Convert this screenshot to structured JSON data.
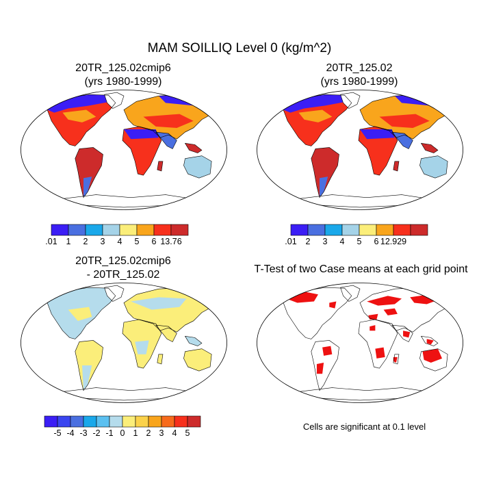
{
  "title": "MAM SOILLIQ Level 0 (kg/m^2)",
  "panels": [
    {
      "line1": "20TR_125.02cmip6",
      "line2": "(yrs 1980-1999)"
    },
    {
      "line1": "20TR_125.02",
      "line2": "(yrs 1980-1999)"
    },
    {
      "line1": "20TR_125.02cmip6",
      "line2": "- 20TR_125.02"
    },
    {
      "line1": "T-Test of two Case means at each grid point"
    }
  ],
  "colorbars": [
    {
      "colors": [
        "#3b1ef5",
        "#4a6fe0",
        "#1aa8ea",
        "#a5d3e8",
        "#fbee7a",
        "#f9a51c",
        "#f7301c",
        "#cd2b2b"
      ],
      "labels": [
        ".01",
        "1",
        "2",
        "3",
        "4",
        "5",
        "6",
        "13.76"
      ]
    },
    {
      "colors": [
        "#3b1ef5",
        "#4a6fe0",
        "#1aa8ea",
        "#a5d3e8",
        "#fbee7a",
        "#f9a51c",
        "#f7301c",
        "#cd2b2b"
      ],
      "labels": [
        ".01",
        "2",
        "3",
        "4",
        "5",
        "6",
        "12.929"
      ]
    },
    {
      "colors": [
        "#3b1ef5",
        "#3a45f0",
        "#4a6fe0",
        "#1aa8ea",
        "#5bc0f0",
        "#b5dcec",
        "#fbee7a",
        "#fbd24a",
        "#f9a51c",
        "#f76b1c",
        "#f7301c",
        "#cd2b2b"
      ],
      "labels": [
        "-5",
        "-4",
        "-3",
        "-2",
        "-1",
        "0",
        "1",
        "2",
        "3",
        "4",
        "5"
      ]
    }
  ],
  "footnote": "Cells are significant at 0.1 level"
}
